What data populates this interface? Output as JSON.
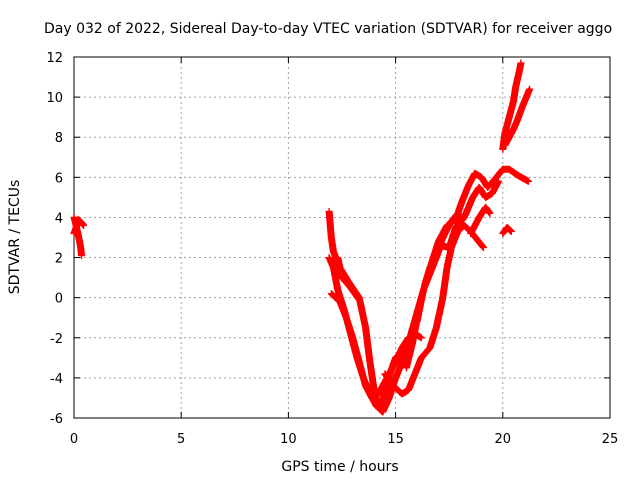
{
  "chart_data": {
    "type": "scatter",
    "title": "Day 032 of 2022, Sidereal Day-to-day VTEC variation (SDTVAR) for receiver aggo",
    "xlabel": "GPS time / hours",
    "ylabel": "SDTVAR / TECUs",
    "xlim": [
      0,
      25
    ],
    "ylim": [
      -6,
      12
    ],
    "x_ticks": [
      0,
      5,
      10,
      15,
      20,
      25
    ],
    "y_ticks": [
      -6,
      -4,
      -2,
      0,
      2,
      4,
      6,
      8,
      10,
      12
    ],
    "x_tick_labels": [
      "0",
      "5",
      "10",
      "15",
      "20",
      "25"
    ],
    "y_tick_labels": [
      "-6",
      "-4",
      "-2",
      "0",
      "2",
      "4",
      "6",
      "8",
      "10",
      "12"
    ],
    "grid": true,
    "marker": "+",
    "color": "#ff0000",
    "series": [
      {
        "segments": [
          [
            [
              0.0,
              4.0
            ],
            [
              0.1,
              3.6
            ],
            [
              0.2,
              3.1
            ],
            [
              0.3,
              2.6
            ],
            [
              0.35,
              2.1
            ]
          ],
          [
            [
              0.0,
              3.2
            ],
            [
              0.1,
              3.5
            ],
            [
              0.2,
              3.9
            ],
            [
              0.3,
              3.8
            ],
            [
              0.45,
              3.6
            ]
          ],
          [
            [
              11.9,
              4.3
            ],
            [
              12.0,
              3.0
            ],
            [
              12.1,
              2.3
            ],
            [
              12.4,
              1.5
            ],
            [
              12.8,
              0.8
            ],
            [
              13.3,
              0.0
            ],
            [
              13.6,
              -1.5
            ],
            [
              13.8,
              -3.2
            ],
            [
              14.0,
              -4.6
            ],
            [
              14.2,
              -5.5
            ],
            [
              14.4,
              -5.1
            ],
            [
              14.6,
              -4.2
            ],
            [
              15.0,
              -3.0
            ],
            [
              15.3,
              -2.7
            ]
          ],
          [
            [
              11.9,
              2.0
            ],
            [
              12.1,
              1.5
            ],
            [
              12.3,
              0.4
            ],
            [
              12.6,
              -0.6
            ],
            [
              12.9,
              -1.8
            ],
            [
              13.2,
              -3.0
            ],
            [
              13.5,
              -4.0
            ],
            [
              13.8,
              -4.8
            ],
            [
              14.1,
              -5.4
            ],
            [
              14.4,
              -5.7
            ],
            [
              14.7,
              -5.0
            ],
            [
              15.0,
              -4.0
            ],
            [
              15.4,
              -3.0
            ],
            [
              15.8,
              -1.5
            ],
            [
              16.2,
              0.0
            ],
            [
              16.6,
              1.5
            ],
            [
              17.0,
              2.5
            ],
            [
              17.3,
              3.2
            ],
            [
              17.6,
              3.8
            ],
            [
              17.9,
              4.2
            ],
            [
              18.1,
              4.0
            ]
          ],
          [
            [
              12.3,
              2.0
            ],
            [
              12.5,
              1.0
            ],
            [
              12.9,
              0.5
            ],
            [
              13.3,
              -0.1
            ]
          ],
          [
            [
              12.0,
              0.2
            ],
            [
              12.4,
              -0.2
            ],
            [
              12.7,
              -1.0
            ],
            [
              13.0,
              -2.0
            ],
            [
              13.3,
              -3.2
            ],
            [
              13.6,
              -4.4
            ],
            [
              13.9,
              -5.0
            ],
            [
              14.2,
              -4.8
            ],
            [
              14.6,
              -4.0
            ],
            [
              15.0,
              -3.2
            ],
            [
              15.3,
              -2.5
            ],
            [
              15.6,
              -2.0
            ],
            [
              15.9,
              -1.8
            ],
            [
              16.2,
              -2.0
            ]
          ],
          [
            [
              14.5,
              -3.8
            ],
            [
              14.9,
              -4.4
            ],
            [
              15.3,
              -4.8
            ],
            [
              15.6,
              -4.6
            ],
            [
              15.9,
              -3.8
            ],
            [
              16.2,
              -3.0
            ],
            [
              16.6,
              -2.5
            ],
            [
              16.9,
              -1.5
            ],
            [
              17.2,
              0.0
            ],
            [
              17.4,
              1.5
            ],
            [
              17.6,
              2.5
            ],
            [
              17.9,
              3.3
            ],
            [
              18.2,
              3.6
            ],
            [
              18.5,
              3.3
            ],
            [
              18.8,
              2.9
            ],
            [
              19.1,
              2.5
            ]
          ],
          [
            [
              15.5,
              -3.5
            ],
            [
              15.8,
              -2.2
            ],
            [
              16.1,
              -0.5
            ],
            [
              16.4,
              0.8
            ],
            [
              16.7,
              1.8
            ],
            [
              17.0,
              2.8
            ],
            [
              17.4,
              3.6
            ],
            [
              17.8,
              3.9
            ],
            [
              18.1,
              4.8
            ],
            [
              18.4,
              5.6
            ],
            [
              18.7,
              6.2
            ],
            [
              19.0,
              6.0
            ],
            [
              19.3,
              5.5
            ],
            [
              19.7,
              6.0
            ],
            [
              20.0,
              6.4
            ],
            [
              20.3,
              6.4
            ],
            [
              20.7,
              6.1
            ],
            [
              21.2,
              5.8
            ]
          ],
          [
            [
              16.0,
              -1.2
            ],
            [
              16.3,
              0.4
            ],
            [
              16.6,
              1.2
            ],
            [
              16.9,
              2.0
            ],
            [
              17.1,
              2.6
            ],
            [
              17.5,
              2.5
            ],
            [
              17.8,
              3.5
            ],
            [
              18.2,
              4.0
            ],
            [
              18.6,
              5.0
            ],
            [
              18.9,
              5.5
            ],
            [
              19.2,
              5.0
            ],
            [
              19.5,
              5.2
            ],
            [
              19.8,
              5.8
            ]
          ],
          [
            [
              18.5,
              3.2
            ],
            [
              18.9,
              4.0
            ],
            [
              19.2,
              4.5
            ],
            [
              19.4,
              4.2
            ]
          ],
          [
            [
              20.0,
              3.2
            ],
            [
              20.2,
              3.5
            ],
            [
              20.4,
              3.3
            ]
          ],
          [
            [
              20.0,
              7.4
            ],
            [
              20.1,
              8.2
            ],
            [
              20.3,
              9.0
            ],
            [
              20.5,
              9.8
            ],
            [
              20.6,
              10.5
            ],
            [
              20.75,
              11.2
            ],
            [
              20.85,
              11.7
            ]
          ],
          [
            [
              20.1,
              7.6
            ],
            [
              20.3,
              8.0
            ],
            [
              20.5,
              8.4
            ],
            [
              20.7,
              8.9
            ],
            [
              20.9,
              9.5
            ],
            [
              21.1,
              10.0
            ],
            [
              21.25,
              10.4
            ]
          ]
        ]
      }
    ]
  }
}
